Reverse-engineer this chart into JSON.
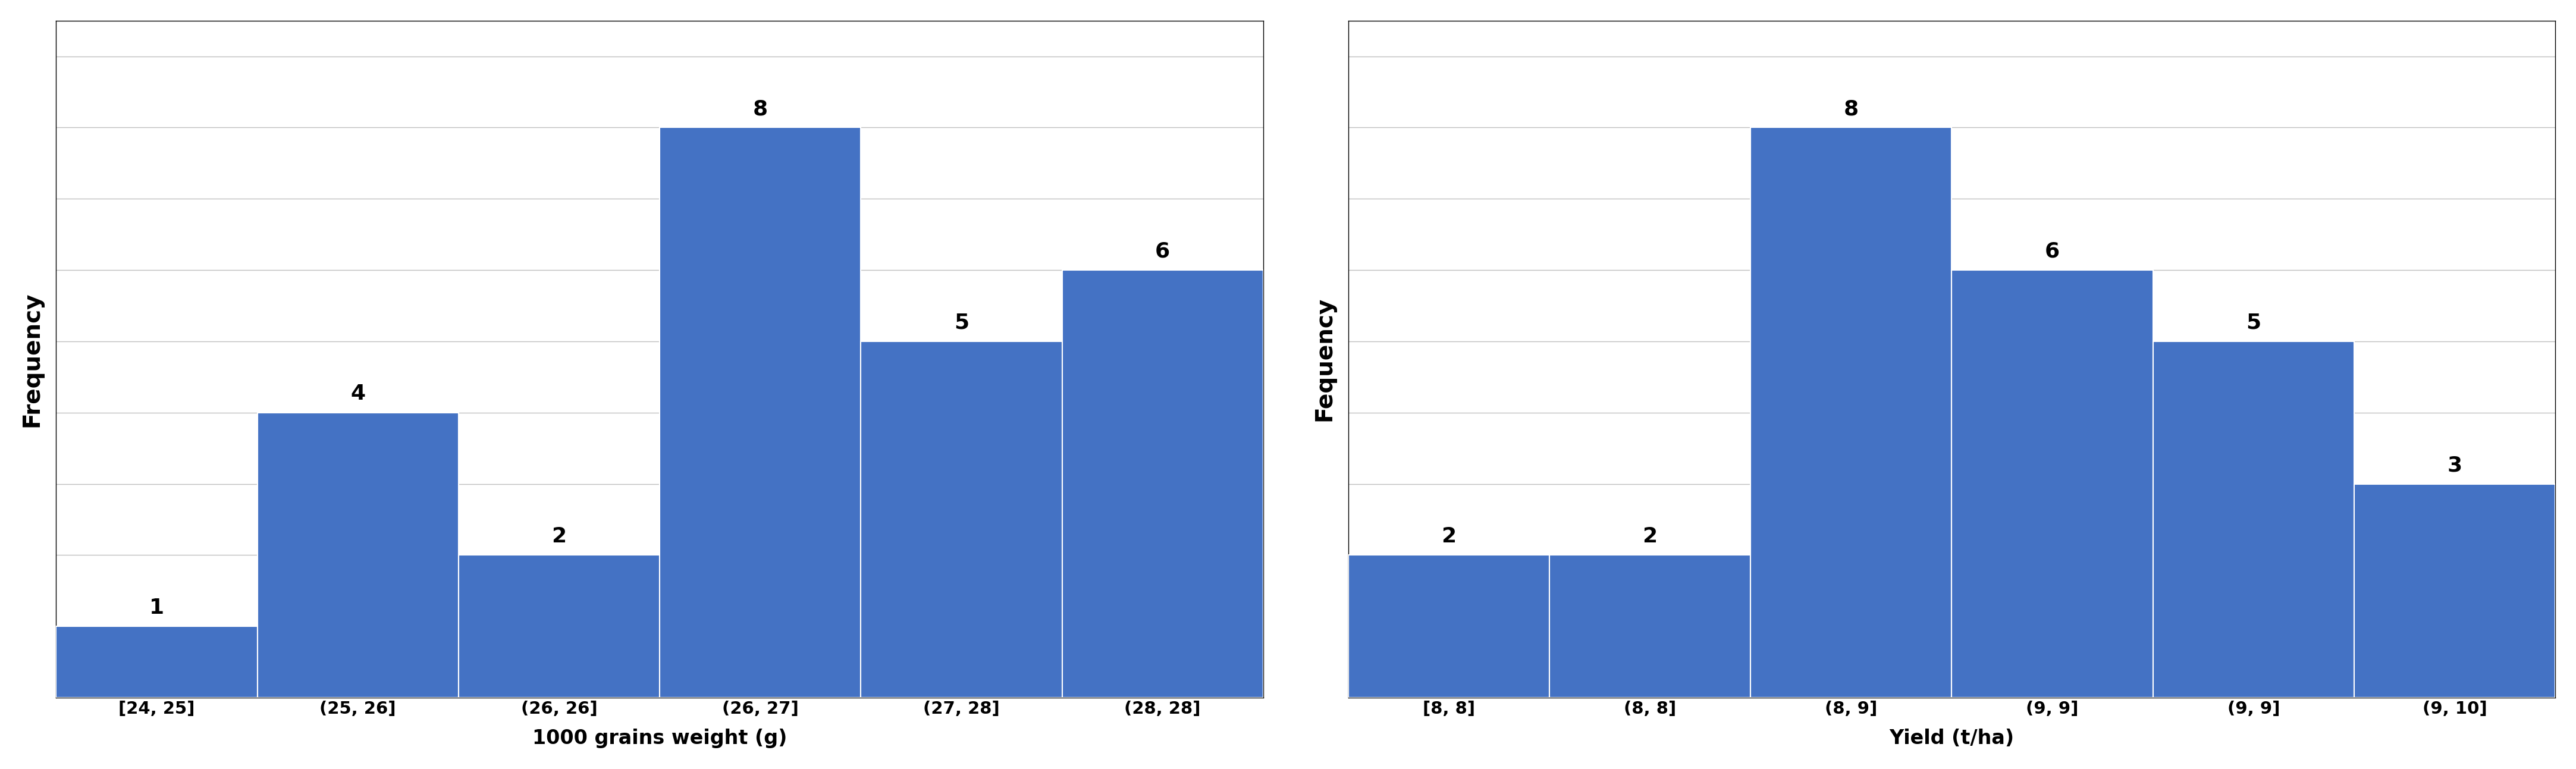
{
  "left_chart": {
    "categories": [
      "[24, 25]",
      "(25, 26]",
      "(26, 26]",
      "(26, 27]",
      "(27, 28]",
      "(28, 28]"
    ],
    "values": [
      1,
      4,
      2,
      8,
      5,
      6
    ],
    "bar_color": "#4472C4",
    "ylabel": "Frequency",
    "xlabel": "1000 grains weight (g)"
  },
  "right_chart": {
    "categories": [
      "[8, 8]",
      "(8, 8]",
      "(8, 9]",
      "(9, 9]",
      "(9, 9]",
      "(9, 10]"
    ],
    "values": [
      2,
      2,
      8,
      6,
      5,
      3
    ],
    "bar_color": "#4472C4",
    "ylabel": "Fequency",
    "xlabel": "Yield (t/ha)"
  },
  "grid_color": "#C0C0C0",
  "bg_color": "#FFFFFF",
  "tick_fontsize": 21,
  "bar_label_fontsize": 26,
  "ylabel_fontsize": 28,
  "xlabel_fontsize": 24,
  "figure_width": 43.31,
  "figure_height": 12.93,
  "ylim": [
    0,
    9.5
  ],
  "yticks": [
    0,
    1,
    2,
    3,
    4,
    5,
    6,
    7,
    8,
    9
  ]
}
